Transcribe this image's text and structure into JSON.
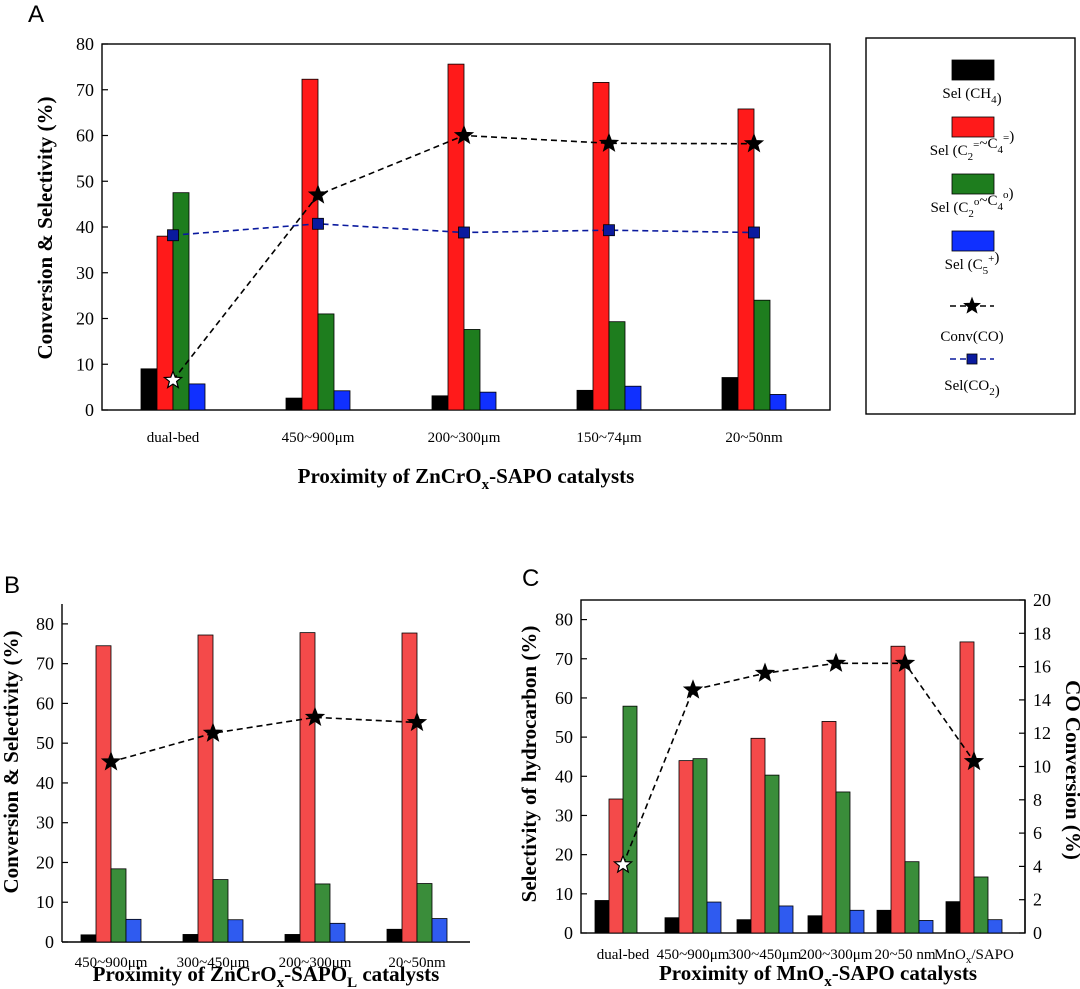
{
  "colors": {
    "ch4": "#000000",
    "olefin": "#ff1a1a",
    "paraffin": "#1e7d1e",
    "c5": "#1030ff",
    "conv": "#000000",
    "co2": "#0a1a9e",
    "olefin_light": "#f44a4a",
    "paraffin_light": "#3a8d3a",
    "c5_light": "#2f5bf0"
  },
  "chart_data": [
    {
      "panel": "A",
      "type": "bar",
      "title": "Proximity of ZnCrOx-SAPO catalysts",
      "xlabel": "Proximity of ZnCrOx-SAPO catalysts",
      "ylabel": "Conversion & Selectivity (%)",
      "ylim": [
        0,
        80
      ],
      "yticks": [
        0,
        10,
        20,
        30,
        40,
        50,
        60,
        70,
        80
      ],
      "categories": [
        "dual-bed",
        "450~900μm",
        "200~300μm",
        "150~74μm",
        "20~50nm"
      ],
      "series": [
        {
          "name": "Sel (CH4)",
          "kind": "bar",
          "color_key": "ch4",
          "values": [
            9.0,
            2.6,
            3.1,
            4.3,
            7.1
          ]
        },
        {
          "name": "Sel (C2=~C4=)",
          "kind": "bar",
          "color_key": "olefin",
          "values": [
            38.0,
            72.3,
            75.6,
            71.6,
            65.8
          ]
        },
        {
          "name": "Sel (C2o~C4o)",
          "kind": "bar",
          "color_key": "paraffin",
          "values": [
            47.5,
            21.0,
            17.6,
            19.3,
            24.0
          ]
        },
        {
          "name": "Sel (C5+)",
          "kind": "bar",
          "color_key": "c5",
          "values": [
            5.7,
            4.2,
            3.9,
            5.2,
            3.4
          ]
        },
        {
          "name": "Conv(CO)",
          "kind": "line-star",
          "color_key": "conv",
          "values": [
            6.5,
            47.0,
            60.0,
            58.3,
            58.2
          ]
        },
        {
          "name": "Sel(CO2)",
          "kind": "line-square",
          "color_key": "co2",
          "values": [
            38.2,
            40.7,
            38.8,
            39.3,
            38.8
          ]
        }
      ],
      "legend": [
        {
          "text": "Sel (CH",
          "sub": "4",
          "tail": ")"
        },
        {
          "text": "Sel (C",
          "sub": "2",
          "sup": "=",
          "mid": "~C",
          "sub2": "4",
          "sup2": "=",
          "tail": ")"
        },
        {
          "text": "Sel (C",
          "sub": "2",
          "sup": "o",
          "mid": "~C",
          "sub2": "4",
          "sup2": "o",
          "tail": ")"
        },
        {
          "text": "Sel (C",
          "sub": "5",
          "sup": "+",
          "tail": ")"
        },
        {
          "text": "Conv(CO)"
        },
        {
          "text": "Sel(CO",
          "sub": "2",
          "tail": ")"
        }
      ]
    },
    {
      "panel": "B",
      "type": "bar",
      "xlabel": "Proximity of ZnCrOx-SAPOL catalysts",
      "ylabel": "Conversion & Selectivity (%)",
      "ylim": [
        0,
        85
      ],
      "yticks": [
        0,
        10,
        20,
        30,
        40,
        50,
        60,
        70,
        80
      ],
      "categories": [
        "450~900μm",
        "300~450μm",
        "200~300μm",
        "20~50nm"
      ],
      "series": [
        {
          "name": "Sel (CH4)",
          "kind": "bar",
          "color_key": "ch4",
          "values": [
            1.8,
            1.9,
            1.9,
            3.2
          ]
        },
        {
          "name": "Sel (C2=~C4=)",
          "kind": "bar",
          "color_key": "olefin_light",
          "values": [
            74.5,
            77.2,
            77.8,
            77.7
          ]
        },
        {
          "name": "Sel (C2o~C4o)",
          "kind": "bar",
          "color_key": "paraffin_light",
          "values": [
            18.4,
            15.7,
            14.6,
            14.7
          ]
        },
        {
          "name": "Sel (C5+)",
          "kind": "bar",
          "color_key": "c5_light",
          "values": [
            5.7,
            5.6,
            4.7,
            5.9
          ]
        },
        {
          "name": "Conv(CO)",
          "kind": "line-star",
          "color_key": "conv",
          "values": [
            45.3,
            52.5,
            56.5,
            55.2
          ]
        }
      ]
    },
    {
      "panel": "C",
      "type": "bar",
      "xlabel": "Proximity of MnOx-SAPO catalysts",
      "ylabel": "Selectivity of hydrocarbon (%)",
      "y2label": "CO Conversion (%)",
      "ylim": [
        0,
        85
      ],
      "yticks": [
        0,
        10,
        20,
        30,
        40,
        50,
        60,
        70,
        80
      ],
      "y2lim": [
        0,
        20
      ],
      "y2ticks": [
        0,
        2,
        4,
        6,
        8,
        10,
        12,
        14,
        16,
        18,
        20
      ],
      "categories": [
        "dual-bed",
        "450~900μm",
        "300~450μm",
        "200~300μm",
        "20~50 nm",
        "MnOx/SAPO"
      ],
      "series": [
        {
          "name": "Sel (CH4)",
          "kind": "bar",
          "color_key": "ch4",
          "values": [
            8.3,
            3.9,
            3.4,
            4.4,
            5.8,
            8.0
          ]
        },
        {
          "name": "Sel (C2=~C4=)",
          "kind": "bar",
          "color_key": "olefin_light",
          "values": [
            34.2,
            44.0,
            49.7,
            54.0,
            73.2,
            74.3
          ]
        },
        {
          "name": "Sel (C2o~C4o)",
          "kind": "bar",
          "color_key": "paraffin_light",
          "values": [
            57.9,
            44.5,
            40.3,
            36.0,
            18.2,
            14.3
          ]
        },
        {
          "name": "Sel (C5+)",
          "kind": "bar",
          "color_key": "c5_light",
          "values": [
            0,
            7.9,
            6.9,
            5.8,
            3.2,
            3.4
          ]
        },
        {
          "name": "CO Conversion",
          "kind": "line-star",
          "axis": "right",
          "color_key": "conv",
          "values": [
            4.1,
            14.6,
            15.6,
            16.2,
            16.2,
            10.3
          ]
        }
      ]
    }
  ],
  "labels": {
    "panelA": "A",
    "panelB": "B",
    "panelC": "C",
    "xA_main": "Proximity of ZnCrO",
    "xA_sub": "x",
    "xA_tail": "-SAPO catalysts",
    "xB_main": "Proximity of ZnCrO",
    "xB_sub": "x",
    "xB_mid": "-SAPO",
    "xB_sub2": "L",
    "xB_tail": " catalysts",
    "xC_main": "Proximity of MnO",
    "xC_sub": "x",
    "xC_tail": "-SAPO catalysts",
    "yA": "Conversion & Selectivity (%)",
    "yB": "Conversion & Selectivity (%)",
    "yC": "Selectivity of hydrocarbon (%)",
    "y2C": "CO Conversion (%)",
    "catC_last_main": "MnO",
    "catC_last_sub": "x",
    "catC_last_tail": "/SAPO"
  }
}
